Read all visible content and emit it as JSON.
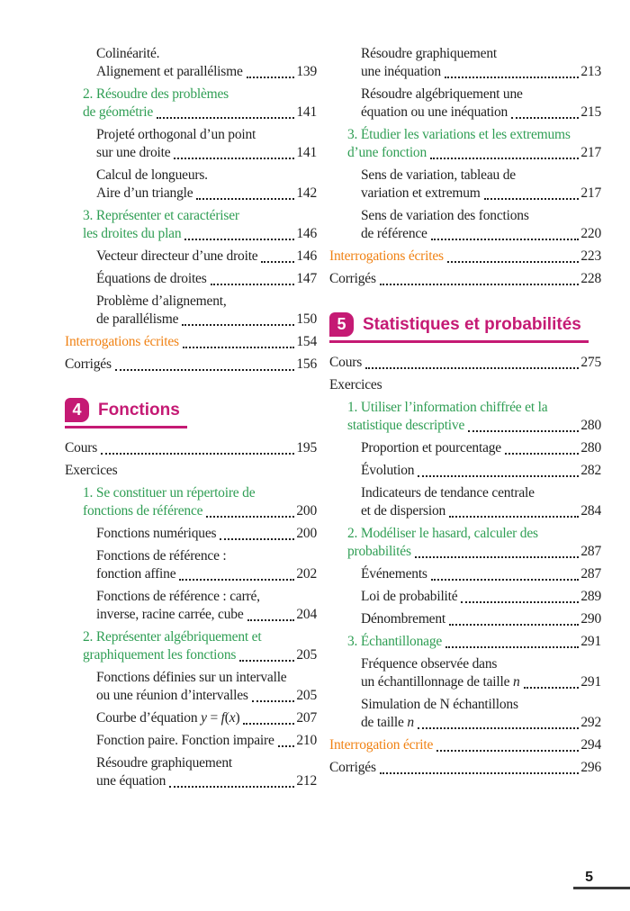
{
  "page": {
    "footer_page_number": "5"
  },
  "colors": {
    "magenta": "#c51a74",
    "green": "#2f9e54",
    "orange": "#f08214",
    "text": "#1f1f1f"
  },
  "columns": [
    {
      "entries": [
        {
          "style": "sub",
          "level": 2,
          "pre": [
            "Colinéarité."
          ],
          "text": "Alignement et parallélisme",
          "page": "139"
        },
        {
          "style": "section",
          "level": 1,
          "pre": [
            "2. Résoudre des problèmes"
          ],
          "text": "de géométrie",
          "page": "141"
        },
        {
          "style": "sub",
          "level": 2,
          "pre": [
            "Projeté orthogonal d’un point"
          ],
          "text": "sur une droite",
          "page": "141"
        },
        {
          "style": "sub",
          "level": 2,
          "pre": [
            "Calcul de longueurs."
          ],
          "text": "Aire d’un triangle",
          "page": "142"
        },
        {
          "style": "section",
          "level": 1,
          "pre": [
            "3. Représenter et caractériser"
          ],
          "text": "les droites du plan",
          "page": "146"
        },
        {
          "style": "sub",
          "level": 2,
          "pre": [],
          "text": "Vecteur directeur d’une droite",
          "page": "146"
        },
        {
          "style": "sub",
          "level": 2,
          "pre": [],
          "text": "Équations de droites",
          "page": "147"
        },
        {
          "style": "sub",
          "level": 2,
          "pre": [
            "Problème d’alignement,"
          ],
          "text": "de parallélisme",
          "page": "150"
        },
        {
          "style": "interro",
          "level": 0,
          "pre": [],
          "text": "Interrogations écrites",
          "page": "154"
        },
        {
          "style": "top",
          "level": 0,
          "pre": [],
          "text": "Corrigés",
          "page": "156"
        },
        {
          "style": "chapter",
          "num": "4",
          "title": "Fonctions"
        },
        {
          "style": "top",
          "level": 0,
          "pre": [],
          "text": "Cours",
          "page": "195"
        },
        {
          "style": "top",
          "level": 0,
          "pre": [],
          "text": "Exercices"
        },
        {
          "style": "section",
          "level": 1,
          "pre": [
            "1. Se constituer un répertoire de"
          ],
          "text": "fonctions de référence",
          "page": "200"
        },
        {
          "style": "sub",
          "level": 2,
          "pre": [],
          "text": "Fonctions numériques",
          "page": "200"
        },
        {
          "style": "sub",
          "level": 2,
          "pre": [
            "Fonctions de référence :"
          ],
          "text": "fonction affine",
          "page": "202"
        },
        {
          "style": "sub",
          "level": 2,
          "pre": [
            "Fonctions de référence : carré,"
          ],
          "text": "inverse, racine carrée, cube",
          "page": "204"
        },
        {
          "style": "section",
          "level": 1,
          "pre": [
            "2. Représenter algébriquement et"
          ],
          "text": "graphiquement les fonctions",
          "page": "205"
        },
        {
          "style": "sub",
          "level": 2,
          "pre": [
            "Fonctions définies sur un intervalle"
          ],
          "text": "ou une réunion d’intervalles",
          "page": "205"
        },
        {
          "style": "sub",
          "level": 2,
          "pre": [],
          "text": "Courbe d’équation *y* = *f*(*x*)",
          "page": "207"
        },
        {
          "style": "sub",
          "level": 2,
          "pre": [],
          "text": "Fonction paire. Fonction impaire",
          "page": "210"
        },
        {
          "style": "sub",
          "level": 2,
          "pre": [
            "Résoudre graphiquement"
          ],
          "text": "une équation",
          "page": "212"
        }
      ]
    },
    {
      "entries": [
        {
          "style": "sub",
          "level": 2,
          "pre": [
            "Résoudre graphiquement"
          ],
          "text": "une inéquation",
          "page": "213"
        },
        {
          "style": "sub",
          "level": 2,
          "pre": [
            "Résoudre algébriquement une"
          ],
          "text": "équation ou une inéquation",
          "page": "215"
        },
        {
          "style": "section",
          "level": 1,
          "pre": [
            "3. Étudier les variations et les extremums"
          ],
          "text": "d’une fonction",
          "page": "217"
        },
        {
          "style": "sub",
          "level": 2,
          "pre": [
            "Sens de variation, tableau de"
          ],
          "text": "variation et extremum",
          "page": "217"
        },
        {
          "style": "sub",
          "level": 2,
          "pre": [
            "Sens de variation des fonctions"
          ],
          "text": "de référence",
          "page": "220"
        },
        {
          "style": "interro",
          "level": 0,
          "pre": [],
          "text": "Interrogations écrites",
          "page": "223"
        },
        {
          "style": "top",
          "level": 0,
          "pre": [],
          "text": "Corrigés",
          "page": "228"
        },
        {
          "style": "chapter",
          "num": "5",
          "title": "Statistiques et probabilités"
        },
        {
          "style": "top",
          "level": 0,
          "pre": [],
          "text": "Cours",
          "page": "275"
        },
        {
          "style": "top",
          "level": 0,
          "pre": [],
          "text": "Exercices"
        },
        {
          "style": "section",
          "level": 1,
          "pre": [
            "1. Utiliser l’information chiffrée et la"
          ],
          "text": "statistique descriptive",
          "page": "280"
        },
        {
          "style": "sub",
          "level": 2,
          "pre": [],
          "text": "Proportion et pourcentage",
          "page": "280"
        },
        {
          "style": "sub",
          "level": 2,
          "pre": [],
          "text": "Évolution",
          "page": "282"
        },
        {
          "style": "sub",
          "level": 2,
          "pre": [
            "Indicateurs de tendance centrale"
          ],
          "text": "et de dispersion",
          "page": "284"
        },
        {
          "style": "section",
          "level": 1,
          "pre": [
            "2. Modéliser le hasard, calculer des"
          ],
          "text": "probabilités",
          "page": "287"
        },
        {
          "style": "sub",
          "level": 2,
          "pre": [],
          "text": "Événements",
          "page": "287"
        },
        {
          "style": "sub",
          "level": 2,
          "pre": [],
          "text": "Loi de probabilité",
          "page": "289"
        },
        {
          "style": "sub",
          "level": 2,
          "pre": [],
          "text": "Dénombrement",
          "page": "290"
        },
        {
          "style": "section",
          "level": 1,
          "pre": [],
          "text": "3. Échantillonage",
          "page": "291"
        },
        {
          "style": "sub",
          "level": 2,
          "pre": [
            "Fréquence observée dans"
          ],
          "text": "un échantillonnage de taille *n*",
          "page": "291"
        },
        {
          "style": "sub",
          "level": 2,
          "pre": [
            "Simulation de N échantillons"
          ],
          "text": "de taille *n*",
          "page": "292"
        },
        {
          "style": "interro",
          "level": 0,
          "pre": [],
          "text": "Interrogation écrite",
          "page": "294"
        },
        {
          "style": "top",
          "level": 0,
          "pre": [],
          "text": "Corrigés",
          "page": "296"
        }
      ]
    }
  ]
}
